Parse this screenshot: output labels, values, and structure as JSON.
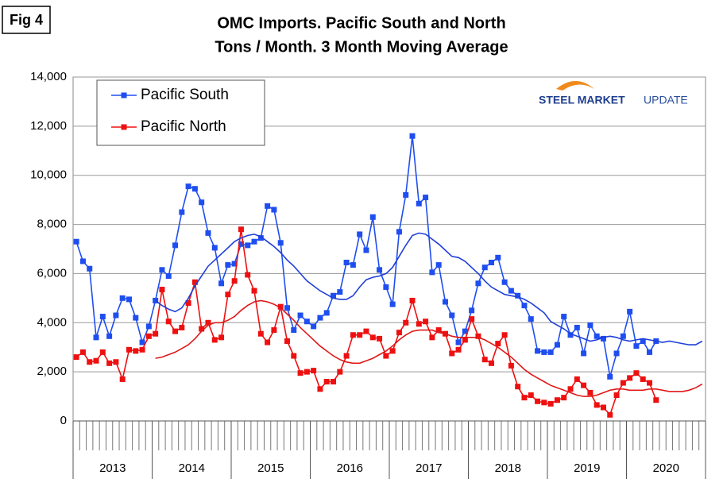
{
  "fig_label": "Fig 4",
  "chart_data": {
    "type": "line",
    "title": [
      "OMC Imports. Pacific South and North",
      "Tons / Month. 3 Month Moving Average"
    ],
    "logo": [
      "STEEL MARKET",
      "UPDATE"
    ],
    "categories": [
      null,
      null,
      null,
      null,
      null,
      null,
      null,
      null,
      null,
      null,
      null,
      null,
      null,
      null,
      null,
      null,
      null,
      null,
      null,
      null,
      null,
      null,
      null,
      null,
      null,
      null,
      null,
      null,
      null,
      null,
      null,
      null,
      null,
      null,
      null,
      null,
      null,
      null,
      null,
      null,
      null,
      null,
      null,
      null,
      null,
      null,
      null,
      null,
      null,
      null,
      null,
      null,
      null,
      null,
      null,
      null,
      null,
      null,
      null,
      null,
      null,
      null,
      null,
      null,
      null,
      null,
      null,
      null,
      null,
      null,
      null,
      null,
      null,
      null,
      null,
      null,
      null,
      null,
      null,
      null,
      null,
      null,
      null,
      null,
      null,
      null,
      null,
      null,
      null,
      null,
      null,
      null,
      null,
      null,
      null,
      null
    ],
    "year_labels": [
      "2013",
      "2014",
      "2015",
      "2016",
      "2017",
      "2018",
      "2019",
      "2020"
    ],
    "ylim": [
      0,
      14000
    ],
    "yticks": [
      0,
      {
        "value": 2000,
        "label": "2,000"
      },
      {
        "value": 4000,
        "label": "4,000"
      },
      {
        "value": 6000,
        "label": "6,000"
      },
      {
        "value": 8000,
        "label": "8,000"
      },
      {
        "value": 10000,
        "label": "10,000"
      },
      {
        "value": 12000,
        "label": "12,000"
      },
      {
        "value": 14000,
        "label": "14,000"
      }
    ],
    "grid": true,
    "legend": "top-left",
    "series": [
      {
        "name": "Pacific South",
        "color": "#1f4ef0",
        "marker": "square",
        "values": [
          7300,
          6500,
          6200,
          3400,
          4250,
          3450,
          4300,
          5000,
          4950,
          4200,
          3200,
          3850,
          4900,
          6150,
          5900,
          7150,
          8500,
          9550,
          9450,
          8900,
          7650,
          7050,
          5600,
          6350,
          6400,
          7200,
          7150,
          7300,
          7450,
          8750,
          8600,
          7250,
          4600,
          3700,
          4300,
          4050,
          3850,
          4200,
          4400,
          5100,
          5250,
          6450,
          6350,
          7600,
          6950,
          8300,
          6150,
          5450,
          4750,
          7700,
          9200,
          11600,
          8850,
          9100,
          6050,
          6350,
          4850,
          4300,
          3200,
          3650,
          4500,
          5600,
          6250,
          6450,
          6650,
          5650,
          5300,
          5100,
          4700,
          4150,
          2850,
          2800,
          2800,
          3100,
          4250,
          3500,
          3800,
          2750,
          3900,
          3450,
          3350,
          1800,
          2750,
          3450,
          4450,
          3050,
          3250,
          2800,
          3250,
          null,
          null,
          null,
          null,
          null,
          null,
          null
        ]
      },
      {
        "name": "Pacific North",
        "color": "#ee1010",
        "marker": "square",
        "values": [
          2600,
          2800,
          2400,
          2450,
          2800,
          2350,
          2400,
          1700,
          2900,
          2850,
          2900,
          3450,
          3550,
          5350,
          4050,
          3650,
          3800,
          4800,
          5650,
          3750,
          4000,
          3300,
          3400,
          5150,
          5700,
          7800,
          5950,
          5300,
          3550,
          3200,
          3700,
          4650,
          3250,
          2650,
          1950,
          2000,
          2050,
          1300,
          1600,
          1600,
          2000,
          2650,
          3500,
          3500,
          3650,
          3400,
          3350,
          2650,
          2850,
          3600,
          4000,
          4900,
          3950,
          4050,
          3400,
          3700,
          3550,
          2750,
          2900,
          3300,
          4150,
          3450,
          2500,
          2350,
          3150,
          3500,
          2250,
          1400,
          950,
          1050,
          800,
          750,
          700,
          850,
          950,
          1300,
          1700,
          1450,
          1150,
          650,
          550,
          250,
          1050,
          1550,
          1750,
          1950,
          1700,
          1550,
          850,
          null,
          null,
          null,
          null,
          null,
          null,
          null
        ]
      },
      {
        "color": "#1f3fd8",
        "values": [
          null,
          null,
          null,
          null,
          null,
          null,
          null,
          null,
          null,
          null,
          null,
          null,
          4900,
          4700,
          4550,
          4450,
          4600,
          5000,
          5500,
          5900,
          6300,
          6550,
          6800,
          7050,
          7300,
          7450,
          7550,
          7600,
          7500,
          7300,
          7100,
          6850,
          6550,
          6300,
          6000,
          5700,
          5500,
          5300,
          5150,
          5000,
          4950,
          4950,
          5100,
          5450,
          5750,
          5850,
          5900,
          6000,
          6250,
          6700,
          7150,
          7550,
          7650,
          7600,
          7400,
          7200,
          6950,
          6700,
          6650,
          6500,
          6250,
          6000,
          5700,
          5450,
          5300,
          5150,
          5100,
          5050,
          4950,
          4800,
          4600,
          4400,
          4050,
          3900,
          3750,
          3550,
          3450,
          3350,
          3250,
          3300,
          3400,
          3450,
          3400,
          3300,
          3250,
          3300,
          3350,
          3300,
          3250,
          3200,
          3250,
          3200,
          3150,
          3100,
          3100,
          3250
        ]
      },
      {
        "color": "#e01818",
        "values": [
          null,
          null,
          null,
          null,
          null,
          null,
          null,
          null,
          null,
          null,
          null,
          null,
          2550,
          2600,
          2700,
          2800,
          2950,
          3100,
          3350,
          3650,
          3900,
          4000,
          4000,
          4100,
          4250,
          4500,
          4700,
          4850,
          4900,
          4850,
          4750,
          4600,
          4350,
          4100,
          3800,
          3550,
          3300,
          3050,
          2850,
          2650,
          2500,
          2400,
          2350,
          2350,
          2450,
          2550,
          2700,
          2850,
          3050,
          3300,
          3500,
          3650,
          3700,
          3700,
          3700,
          3600,
          3550,
          3450,
          3400,
          3400,
          3400,
          3400,
          3300,
          3150,
          3000,
          2800,
          2600,
          2350,
          2100,
          1900,
          1750,
          1600,
          1450,
          1350,
          1250,
          1150,
          1050,
          1000,
          1000,
          1050,
          1150,
          1250,
          1300,
          1300,
          1250,
          1250,
          1250,
          1300,
          1300,
          1250,
          1200,
          1200,
          1200,
          1250,
          1350,
          1500
        ]
      }
    ]
  }
}
